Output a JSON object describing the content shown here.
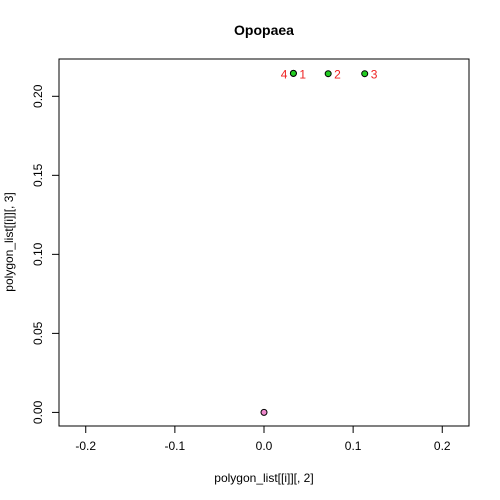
{
  "chart_data": {
    "type": "scatter",
    "title": "Opopaea",
    "xlabel": "polygon_list[[i]][, 2]",
    "ylabel": "polygon_list[[i]][, 3]",
    "xlim": [
      -0.23,
      0.23
    ],
    "ylim": [
      -0.0086,
      0.2236
    ],
    "x_ticks": [
      -0.2,
      -0.1,
      0.0,
      0.1,
      0.2
    ],
    "x_tick_labels": [
      "-0.2",
      "-0.1",
      "0.0",
      "0.1",
      "0.2"
    ],
    "y_ticks": [
      0.0,
      0.05,
      0.1,
      0.15,
      0.2
    ],
    "y_tick_labels": [
      "0.00",
      "0.05",
      "0.10",
      "0.15",
      "0.20"
    ],
    "grid": false,
    "series": [
      {
        "points": [
          {
            "x": 0.033,
            "y": 0.2145,
            "label": "1"
          },
          {
            "x": 0.072,
            "y": 0.2143,
            "label": "2"
          },
          {
            "x": 0.113,
            "y": 0.2143,
            "label": "3"
          },
          {
            "x": 0.033,
            "y": 0.2145,
            "label": "4"
          }
        ],
        "fill": "#22cc22",
        "label_color": "#ee2222"
      },
      {
        "points": [
          {
            "x": 0.0,
            "y": 0.0
          }
        ],
        "fill": "#ee88cc"
      }
    ]
  }
}
